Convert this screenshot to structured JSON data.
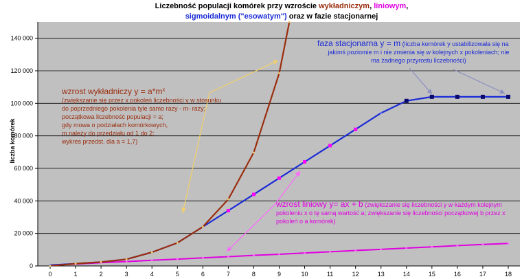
{
  "title": {
    "line1_a": "Liczebność populacji komórek przy wzroście ",
    "line1_exp": "wykładniczym",
    "line1_sep": ", ",
    "line1_lin": "liniowym",
    "line1_end": ",",
    "line2_sig": "sigmoidalnym (\"esowatym\")",
    "line2_end": " oraz w fazie stacjonarnej"
  },
  "annotations": {
    "exp_heading": "wzrost wykładniczy y = a*m",
    "exp_sup": "x",
    "exp_body": [
      "(zwiększanie się przez x pokoleń liczebności y w stosunku",
      "do poprzedniego pokolenia tyle samo razy - m- razy;",
      "początkowa liczebność populacji = a;",
      "gdy mowa o podziałach komórkowych,",
      "m należy do przedziału od 1 do 2;",
      "wykres przedst. dla a = 1,7)"
    ],
    "stat_heading": "faza stacjonarna y = m",
    "stat_body_1": " (liczba komórek y ustabilizowała się na",
    "stat_body_2": "jakimś poziomie m i nie zmienia się w kolejnych x pokoleniach; nie",
    "stat_body_3": "ma żadnego przyrostu liczebności)",
    "lin_heading": "wzrost liniowy y= ax + b",
    "lin_body_1": " (zwiększanie się liczebności y w każdym kolejnym",
    "lin_body_2": "pokoleniu x o tę samą wartość a; zwiększanie się liczebności początkowej b przez x",
    "lin_body_3": "pokoleń o a komórek)"
  },
  "colors": {
    "plot_bg": "#c0c0c0",
    "exp": "#9b2d0e",
    "lin": "#e000e0",
    "sig": "#1a2ad6",
    "stat_marker": "#0a0a6e",
    "lin_marker": "#ff00ff",
    "arrow_exp": "#f3d06a",
    "arrow_stat": "#8a8ec0",
    "arrow_lin": "#ff66ff"
  },
  "chart_data": {
    "type": "line",
    "title": "Liczebność populacji komórek przy wzroście wykładniczym, liniowym, sigmoidalnym (\"esowatym\") oraz w fazie stacjonarnej",
    "xlabel": "",
    "ylabel": "liczba komórek",
    "x": [
      0,
      1,
      2,
      3,
      4,
      5,
      6,
      7,
      8,
      9,
      10,
      11,
      12,
      13,
      14,
      15,
      16,
      17,
      18
    ],
    "xlim": [
      0,
      18
    ],
    "ylim": [
      0,
      150000
    ],
    "yticks": [
      0,
      20000,
      40000,
      60000,
      80000,
      100000,
      120000,
      140000
    ],
    "ytick_labels": [
      "0",
      "20 000",
      "40 000",
      "60 000",
      "80 000",
      "100 000",
      "120 000",
      "140 000"
    ],
    "xtick_labels": [
      "0",
      "1",
      "2",
      "3",
      "4",
      "5",
      "6",
      "7",
      "8",
      "9",
      "10",
      "11",
      "12",
      "13",
      "14",
      "15",
      "16",
      "17",
      "18"
    ],
    "grid": "horizontal",
    "series": [
      {
        "name": "wzrost wykładniczy",
        "role": "exp",
        "x": [
          0,
          1,
          2,
          3,
          4,
          5,
          6,
          7,
          8,
          9,
          9.4
        ],
        "values": [
          0,
          1400,
          2400,
          4100,
          8400,
          14200,
          24100,
          41000,
          69700,
          118500,
          150000
        ]
      },
      {
        "name": "wzrost liniowy",
        "role": "lin",
        "x": [
          0,
          1,
          2,
          3,
          4,
          5,
          6,
          7,
          8,
          9,
          10,
          11,
          12,
          13,
          14,
          15,
          16,
          17,
          18
        ],
        "values": [
          500,
          1200,
          2000,
          2700,
          3500,
          4200,
          5000,
          5700,
          6500,
          7200,
          8000,
          8700,
          9500,
          10200,
          11000,
          11700,
          12500,
          13200,
          13800
        ]
      },
      {
        "name": "wzrost sigmoidalny",
        "role": "sig",
        "x": [
          0,
          1,
          2,
          3,
          4,
          5,
          6,
          7,
          8,
          9,
          10,
          11,
          12,
          13,
          14,
          15,
          16,
          17,
          18
        ],
        "values": [
          500,
          1400,
          2400,
          4100,
          8400,
          14200,
          24100,
          34000,
          44000,
          54000,
          64000,
          74000,
          84000,
          94000,
          101500,
          104000,
          104000,
          104000,
          104000
        ]
      }
    ],
    "markers": {
      "lin_on_sig": [
        7,
        8,
        9,
        10,
        11,
        12
      ],
      "stat_on_sig": [
        14,
        15,
        16,
        17,
        18
      ]
    }
  }
}
